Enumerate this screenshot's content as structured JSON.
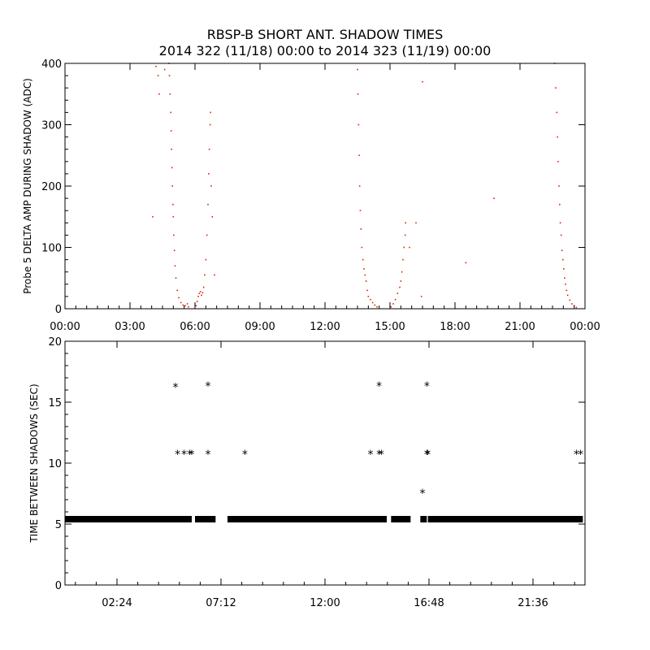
{
  "chart_data": [
    {
      "type": "scatter",
      "title": "RBSP-B SHORT ANT. SHADOW TIMES",
      "subtitle": "2014 322 (11/18) 00:00 to 2014 323 (11/19) 00:00",
      "xlabel": "",
      "ylabel": "Probe 5 DELTA AMP DURING SHADOW (ADC)",
      "xlim": [
        0,
        24
      ],
      "ylim": [
        0,
        400
      ],
      "x_unit": "hours",
      "x_tick_labels": [
        "00:00",
        "03:00",
        "06:00",
        "09:00",
        "12:00",
        "15:00",
        "18:00",
        "21:00",
        "00:00"
      ],
      "y_ticks": [
        0,
        100,
        200,
        300,
        400
      ],
      "color": "#dd2200",
      "grid": false,
      "series": [
        {
          "name": "",
          "points": [
            [
              4.2,
              395
            ],
            [
              4.3,
              380
            ],
            [
              4.35,
              350
            ],
            [
              4.6,
              390
            ],
            [
              4.8,
              400
            ],
            [
              4.82,
              380
            ],
            [
              4.85,
              350
            ],
            [
              4.88,
              320
            ],
            [
              4.9,
              290
            ],
            [
              4.92,
              260
            ],
            [
              4.94,
              230
            ],
            [
              4.96,
              200
            ],
            [
              4.98,
              170
            ],
            [
              5.0,
              150
            ],
            [
              5.02,
              120
            ],
            [
              5.05,
              95
            ],
            [
              5.08,
              70
            ],
            [
              5.12,
              50
            ],
            [
              5.18,
              30
            ],
            [
              5.25,
              18
            ],
            [
              5.35,
              10
            ],
            [
              5.45,
              6
            ],
            [
              5.55,
              5
            ],
            [
              5.65,
              8
            ],
            [
              5.7,
              3
            ],
            [
              4.05,
              150
            ],
            [
              6.05,
              5
            ],
            [
              6.1,
              12
            ],
            [
              6.15,
              20
            ],
            [
              6.2,
              25
            ],
            [
              6.25,
              28
            ],
            [
              6.3,
              22
            ],
            [
              6.35,
              26
            ],
            [
              6.4,
              35
            ],
            [
              6.45,
              55
            ],
            [
              6.5,
              80
            ],
            [
              6.55,
              120
            ],
            [
              6.6,
              170
            ],
            [
              6.63,
              220
            ],
            [
              6.66,
              260
            ],
            [
              6.7,
              300
            ],
            [
              6.72,
              320
            ],
            [
              6.75,
              200
            ],
            [
              6.8,
              150
            ],
            [
              6.9,
              55
            ],
            [
              13.5,
              390
            ],
            [
              13.52,
              350
            ],
            [
              13.55,
              300
            ],
            [
              13.58,
              250
            ],
            [
              13.6,
              200
            ],
            [
              13.63,
              160
            ],
            [
              13.66,
              130
            ],
            [
              13.7,
              100
            ],
            [
              13.75,
              80
            ],
            [
              13.8,
              65
            ],
            [
              13.85,
              55
            ],
            [
              13.9,
              45
            ],
            [
              13.95,
              30
            ],
            [
              14.0,
              20
            ],
            [
              14.1,
              15
            ],
            [
              14.2,
              10
            ],
            [
              14.3,
              6
            ],
            [
              14.4,
              3
            ],
            [
              15.05,
              3
            ],
            [
              15.15,
              8
            ],
            [
              15.25,
              15
            ],
            [
              15.35,
              25
            ],
            [
              15.45,
              35
            ],
            [
              15.5,
              45
            ],
            [
              15.55,
              60
            ],
            [
              15.6,
              80
            ],
            [
              15.65,
              100
            ],
            [
              15.7,
              120
            ],
            [
              15.72,
              140
            ],
            [
              15.9,
              100
            ],
            [
              16.2,
              140
            ],
            [
              16.45,
              20
            ],
            [
              16.5,
              370
            ],
            [
              18.5,
              75
            ],
            [
              19.8,
              180
            ],
            [
              22.6,
              400
            ],
            [
              22.65,
              360
            ],
            [
              22.7,
              320
            ],
            [
              22.73,
              280
            ],
            [
              22.76,
              240
            ],
            [
              22.8,
              200
            ],
            [
              22.83,
              170
            ],
            [
              22.86,
              140
            ],
            [
              22.9,
              120
            ],
            [
              22.94,
              95
            ],
            [
              22.98,
              80
            ],
            [
              23.02,
              65
            ],
            [
              23.06,
              50
            ],
            [
              23.1,
              40
            ],
            [
              23.15,
              30
            ],
            [
              23.2,
              22
            ],
            [
              23.3,
              14
            ],
            [
              23.4,
              8
            ],
            [
              23.5,
              5
            ],
            [
              23.6,
              2
            ]
          ]
        }
      ]
    },
    {
      "type": "scatter",
      "xlabel": "",
      "ylabel": "TIME BETWEEN SHADOWS (SEC)",
      "xlim": [
        0,
        24
      ],
      "ylim": [
        0,
        20
      ],
      "x_unit": "hours",
      "x_ticks": [
        2.4,
        7.2,
        12.0,
        16.8,
        21.6
      ],
      "x_tick_labels": [
        "02:24",
        "07:12",
        "12:00",
        "16:48",
        "21:36"
      ],
      "y_ticks": [
        0,
        5,
        10,
        15,
        20
      ],
      "marker": "*",
      "color": "#000000",
      "grid": false,
      "baseline_value": 5.4,
      "baseline_segments": [
        [
          0.0,
          5.85
        ],
        [
          6.0,
          6.95
        ],
        [
          7.5,
          14.85
        ],
        [
          15.05,
          15.95
        ],
        [
          16.4,
          16.7
        ],
        [
          16.75,
          23.9
        ]
      ],
      "points": [
        [
          5.1,
          16.3
        ],
        [
          5.2,
          10.8
        ],
        [
          5.5,
          10.8
        ],
        [
          5.75,
          10.8
        ],
        [
          5.85,
          10.8
        ],
        [
          6.6,
          16.4
        ],
        [
          6.6,
          10.8
        ],
        [
          8.3,
          10.8
        ],
        [
          14.1,
          10.8
        ],
        [
          14.5,
          16.4
        ],
        [
          14.5,
          10.8
        ],
        [
          14.6,
          10.8
        ],
        [
          16.5,
          7.6
        ],
        [
          16.7,
          16.4
        ],
        [
          16.7,
          10.8
        ],
        [
          16.75,
          10.8
        ],
        [
          23.6,
          10.8
        ],
        [
          23.8,
          10.8
        ]
      ]
    }
  ]
}
